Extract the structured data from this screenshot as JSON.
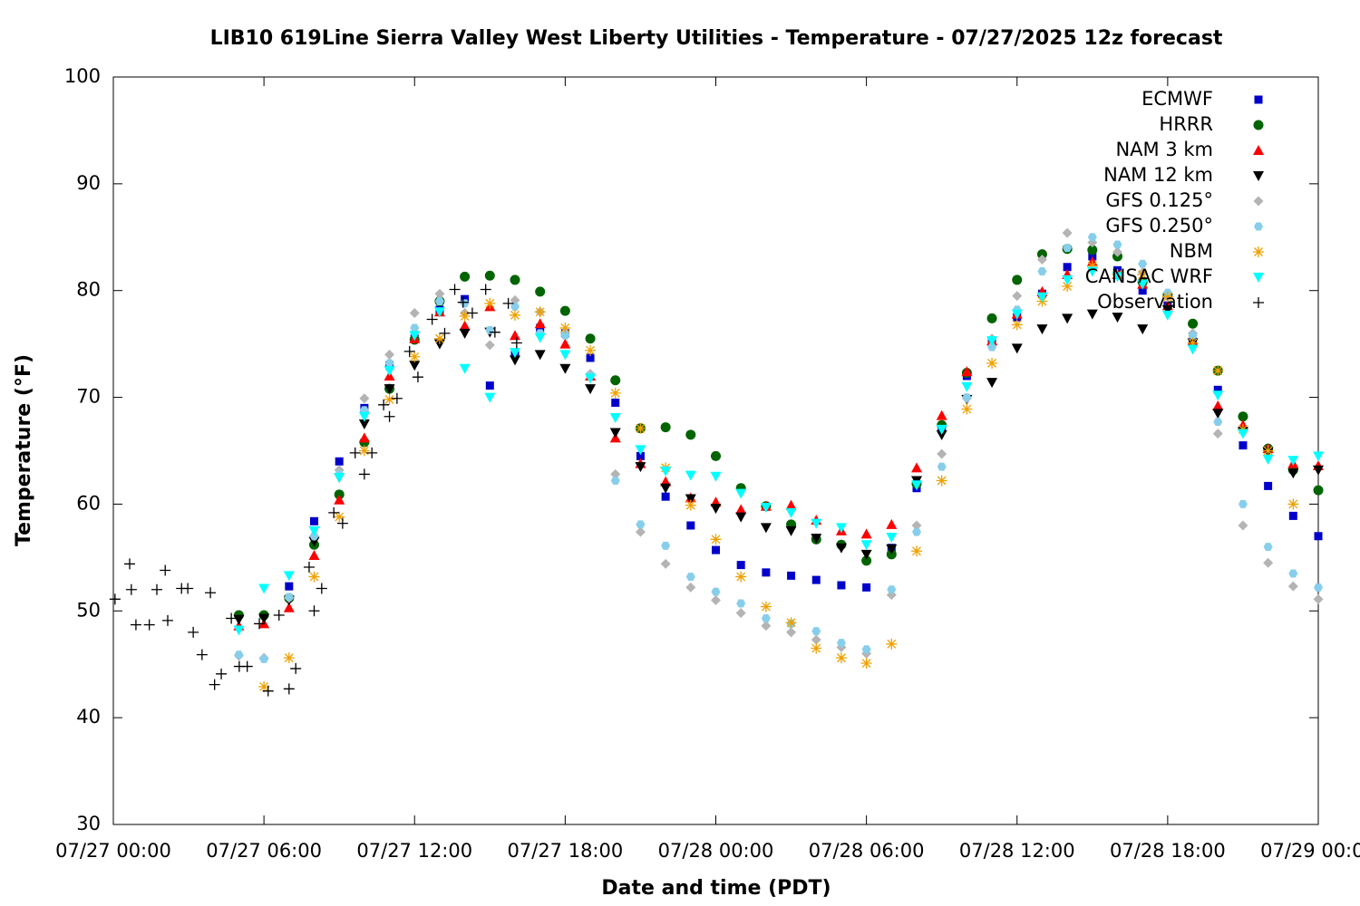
{
  "chart_data": {
    "type": "scatter",
    "title": "LIB10 619Line Sierra Valley West Liberty Utilities - Temperature - 07/27/2025 12z forecast",
    "x_label": "Date and time (PDT)",
    "y_label": "Temperature (°F)",
    "xlim": [
      "07/27 00:00",
      "07/29 00:00"
    ],
    "xticks": [
      "07/27 00:00",
      "07/27 06:00",
      "07/27 12:00",
      "07/27 18:00",
      "07/28 00:00",
      "07/28 06:00",
      "07/28 12:00",
      "07/28 18:00",
      "07/29 00:00"
    ],
    "ylim": [
      30,
      100
    ],
    "yticks": [
      30,
      40,
      50,
      60,
      70,
      80,
      90,
      100
    ],
    "grid": false,
    "legend": "top-right",
    "x": [
      "07/27 05:00",
      "07/27 06:00",
      "07/27 07:00",
      "07/27 08:00",
      "07/27 09:00",
      "07/27 10:00",
      "07/27 11:00",
      "07/27 12:00",
      "07/27 13:00",
      "07/27 14:00",
      "07/27 15:00",
      "07/27 16:00",
      "07/27 17:00",
      "07/27 18:00",
      "07/27 19:00",
      "07/27 20:00",
      "07/27 21:00",
      "07/27 22:00",
      "07/27 23:00",
      "07/28 00:00",
      "07/28 01:00",
      "07/28 02:00",
      "07/28 03:00",
      "07/28 04:00",
      "07/28 05:00",
      "07/28 06:00",
      "07/28 07:00",
      "07/28 08:00",
      "07/28 09:00",
      "07/28 10:00",
      "07/28 11:00",
      "07/28 12:00",
      "07/28 13:00",
      "07/28 14:00",
      "07/28 15:00",
      "07/28 16:00",
      "07/28 17:00",
      "07/28 18:00",
      "07/28 19:00",
      "07/28 20:00",
      "07/28 21:00",
      "07/28 22:00",
      "07/28 23:00",
      "07/29 00:00"
    ],
    "series": [
      {
        "name": "ECMWF",
        "color": "#0000cc",
        "marker": "square",
        "values": [
          null,
          null,
          52.3,
          58.4,
          64.0,
          69.0,
          73.0,
          75.5,
          78.2,
          79.2,
          71.1,
          74.2,
          76.5,
          76.0,
          73.7,
          69.5,
          64.5,
          60.7,
          58.0,
          55.7,
          54.3,
          53.6,
          53.3,
          52.9,
          52.4,
          52.2,
          55.9,
          61.5,
          67.0,
          72.0,
          75.2,
          77.5,
          79.7,
          82.2,
          83.2,
          81.9,
          80.0,
          78.6,
          75.2,
          70.7,
          65.5,
          61.7,
          58.9,
          57.0
        ]
      },
      {
        "name": "HRRR",
        "color": "#006400",
        "marker": "circle",
        "values": [
          49.6,
          49.6,
          51.2,
          56.2,
          60.9,
          65.8,
          70.8,
          75.4,
          79.0,
          81.3,
          81.4,
          81.0,
          79.9,
          78.1,
          75.5,
          71.6,
          67.1,
          67.2,
          66.5,
          64.5,
          61.5,
          59.8,
          58.1,
          56.7,
          56.2,
          54.7,
          55.3,
          61.9,
          67.4,
          72.3,
          77.4,
          81.0,
          83.4,
          83.9,
          83.8,
          83.2,
          80.8,
          79.6,
          76.9,
          72.5,
          68.2,
          65.2,
          63.2,
          61.3
        ]
      },
      {
        "name": "NAM 3 km",
        "color": "#ff0000",
        "marker": "triangle",
        "values": [
          48.6,
          48.8,
          50.3,
          55.2,
          60.4,
          66.2,
          72.0,
          75.5,
          78.0,
          76.7,
          78.5,
          75.8,
          76.9,
          75.0,
          72.0,
          66.2,
          63.8,
          62.1,
          60.6,
          60.2,
          59.5,
          59.8,
          59.9,
          58.5,
          57.5,
          57.2,
          58.1,
          63.4,
          68.3,
          72.4,
          75.3,
          77.8,
          79.9,
          81.5,
          82.7,
          81.5,
          80.6,
          78.6,
          75.3,
          69.2,
          67.4,
          65.2,
          63.8,
          63.6
        ]
      },
      {
        "name": "NAM 12 km",
        "color": "#000000",
        "marker": "triangle-down",
        "values": [
          49.2,
          49.3,
          51.0,
          56.5,
          62.5,
          67.5,
          70.8,
          73.0,
          75.0,
          76.0,
          76.1,
          73.5,
          74.0,
          72.7,
          70.8,
          66.7,
          63.5,
          61.5,
          60.5,
          59.6,
          58.8,
          57.8,
          57.5,
          56.8,
          55.9,
          55.3,
          55.8,
          62.2,
          66.5,
          69.8,
          71.4,
          74.6,
          76.4,
          77.4,
          77.8,
          77.5,
          76.4,
          78.2,
          75.1,
          68.5,
          66.8,
          64.9,
          62.9,
          63.2
        ]
      },
      {
        "name": "GFS 0.125°",
        "color": "#b4b4b4",
        "marker": "diamond",
        "values": [
          45.8,
          45.6,
          51.2,
          57.0,
          63.2,
          69.9,
          74.0,
          77.9,
          79.7,
          77.9,
          74.9,
          79.1,
          78.0,
          76.0,
          72.2,
          62.8,
          57.4,
          54.4,
          52.2,
          51.0,
          49.8,
          48.6,
          48.0,
          47.3,
          46.6,
          46.0,
          51.5,
          58.0,
          64.7,
          69.9,
          75.5,
          79.5,
          82.9,
          85.4,
          84.5,
          83.6,
          81.7,
          79.4,
          76.0,
          66.6,
          58.0,
          54.5,
          52.3,
          51.1
        ]
      },
      {
        "name": "GFS 0.250°",
        "color": "#87ceeb",
        "marker": "hexagon",
        "values": [
          45.9,
          45.5,
          51.3,
          57.0,
          62.8,
          68.8,
          73.2,
          76.5,
          79.0,
          78.8,
          76.3,
          78.5,
          76.0,
          75.8,
          72.0,
          62.2,
          58.1,
          56.1,
          53.2,
          51.8,
          50.7,
          49.3,
          48.8,
          48.1,
          47.0,
          46.4,
          52.0,
          57.4,
          63.5,
          70.0,
          74.7,
          78.2,
          81.8,
          84.0,
          85.0,
          84.3,
          82.5,
          79.8,
          75.8,
          67.7,
          60.0,
          56.0,
          53.5,
          52.2
        ]
      },
      {
        "name": "NBM",
        "color": "#f0a000",
        "marker": "asterisk",
        "values": [
          null,
          42.9,
          45.6,
          53.2,
          58.8,
          65.0,
          69.8,
          73.8,
          75.5,
          77.6,
          78.8,
          77.7,
          78.0,
          76.5,
          74.4,
          70.4,
          67.1,
          63.4,
          59.9,
          56.7,
          53.2,
          50.4,
          48.9,
          46.5,
          45.6,
          45.1,
          46.9,
          55.6,
          62.2,
          68.9,
          73.2,
          76.8,
          79.0,
          80.4,
          82.3,
          81.5,
          81.5,
          79.4,
          75.1,
          72.5,
          67.0,
          65.0,
          60.0,
          null
        ]
      },
      {
        "name": "CANSAC WRF",
        "color": "#00ffff",
        "marker": "triangle-down",
        "values": [
          48.2,
          52.1,
          53.3,
          57.5,
          62.5,
          68.2,
          72.5,
          75.8,
          78.0,
          72.7,
          70.0,
          74.2,
          75.6,
          74.0,
          71.8,
          68.1,
          65.1,
          63.1,
          62.7,
          62.6,
          61.0,
          59.7,
          59.2,
          58.2,
          57.8,
          56.2,
          56.9,
          61.8,
          67.0,
          71.0,
          75.3,
          77.8,
          79.4,
          81.0,
          81.8,
          81.3,
          80.6,
          77.7,
          74.5,
          70.2,
          66.6,
          64.2,
          64.1,
          64.5
        ]
      },
      {
        "name": "Observation",
        "color": "#000000",
        "marker": "plus",
        "x": [
          "07/27 00:04",
          "07/27 00:39",
          "07/27 00:43",
          "07/27 00:54",
          "07/27 01:26",
          "07/27 01:44",
          "07/27 02:04",
          "07/27 02:10",
          "07/27 02:43",
          "07/27 02:58",
          "07/27 03:11",
          "07/27 03:32",
          "07/27 03:52",
          "07/27 04:02",
          "07/27 04:18",
          "07/27 04:42",
          "07/27 05:01",
          "07/27 05:20",
          "07/27 05:49",
          "07/27 06:10",
          "07/27 06:36",
          "07/27 07:00",
          "07/27 07:16",
          "07/27 07:48",
          "07/27 08:00",
          "07/27 08:18",
          "07/27 08:47",
          "07/27 09:08",
          "07/27 09:38",
          "07/27 10:00",
          "07/27 10:18",
          "07/27 10:46",
          "07/27 11:00",
          "07/27 11:18",
          "07/27 11:48",
          "07/27 12:08",
          "07/27 12:42",
          "07/27 13:12",
          "07/27 13:36",
          "07/27 13:56",
          "07/27 14:18",
          "07/27 14:50",
          "07/27 15:12",
          "07/27 15:44",
          "07/27 16:04"
        ],
        "values": [
          51.1,
          54.4,
          52.0,
          48.7,
          48.7,
          52.0,
          53.8,
          49.1,
          52.1,
          52.1,
          48.0,
          45.9,
          51.7,
          43.1,
          44.1,
          49.3,
          44.8,
          44.8,
          48.8,
          42.5,
          49.6,
          42.7,
          44.6,
          54.1,
          50.0,
          52.1,
          59.2,
          58.2,
          64.8,
          62.8,
          64.8,
          69.3,
          68.2,
          69.9,
          74.3,
          71.9,
          77.3,
          76.0,
          80.1,
          78.9,
          77.9,
          80.1,
          76.1,
          78.8,
          75.1
        ]
      }
    ]
  }
}
